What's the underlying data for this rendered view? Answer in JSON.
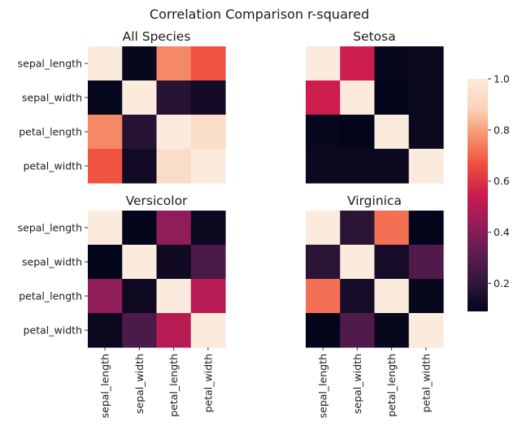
{
  "figure": {
    "title": "Correlation Comparison r-squared"
  },
  "colorbar": {
    "ticks": [
      "0.2",
      "0.4",
      "0.6",
      "0.8",
      "1.0"
    ],
    "tick_values": [
      0.2,
      0.4,
      0.6,
      0.8,
      1.0
    ],
    "range": [
      0.09,
      1.0
    ]
  },
  "colormap": {
    "name": "rocket",
    "stops": [
      "#03051a",
      "#30173a",
      "#5f1c52",
      "#951d5a",
      "#cb1b4f",
      "#ef4b3d",
      "#f6906a",
      "#f9d4bb",
      "#faebdd"
    ]
  },
  "chart_data": [
    {
      "type": "heatmap",
      "title": "All Species",
      "categories": [
        "sepal_length",
        "sepal_width",
        "petal_length",
        "petal_width"
      ],
      "values": [
        [
          1.0,
          0.1,
          0.76,
          0.67
        ],
        [
          0.1,
          1.0,
          0.18,
          0.13
        ],
        [
          0.76,
          0.18,
          1.0,
          0.93
        ],
        [
          0.67,
          0.13,
          0.93,
          1.0
        ]
      ]
    },
    {
      "type": "heatmap",
      "title": "Setosa",
      "categories": [
        "sepal_length",
        "sepal_width",
        "petal_length",
        "petal_width"
      ],
      "values": [
        [
          1.0,
          0.55,
          0.1,
          0.11
        ],
        [
          0.55,
          1.0,
          0.09,
          0.11
        ],
        [
          0.1,
          0.09,
          1.0,
          0.11
        ],
        [
          0.11,
          0.11,
          0.11,
          1.0
        ]
      ]
    },
    {
      "type": "heatmap",
      "title": "Versicolor",
      "categories": [
        "sepal_length",
        "sepal_width",
        "petal_length",
        "petal_width"
      ],
      "values": [
        [
          1.0,
          0.09,
          0.42,
          0.11
        ],
        [
          0.09,
          1.0,
          0.12,
          0.27
        ],
        [
          0.42,
          0.12,
          1.0,
          0.5
        ],
        [
          0.11,
          0.27,
          0.5,
          1.0
        ]
      ]
    },
    {
      "type": "heatmap",
      "title": "Virginica",
      "categories": [
        "sepal_length",
        "sepal_width",
        "petal_length",
        "petal_width"
      ],
      "values": [
        [
          1.0,
          0.19,
          0.72,
          0.09
        ],
        [
          0.19,
          1.0,
          0.14,
          0.28
        ],
        [
          0.72,
          0.14,
          1.0,
          0.1
        ],
        [
          0.09,
          0.28,
          0.1,
          1.0
        ]
      ]
    }
  ]
}
